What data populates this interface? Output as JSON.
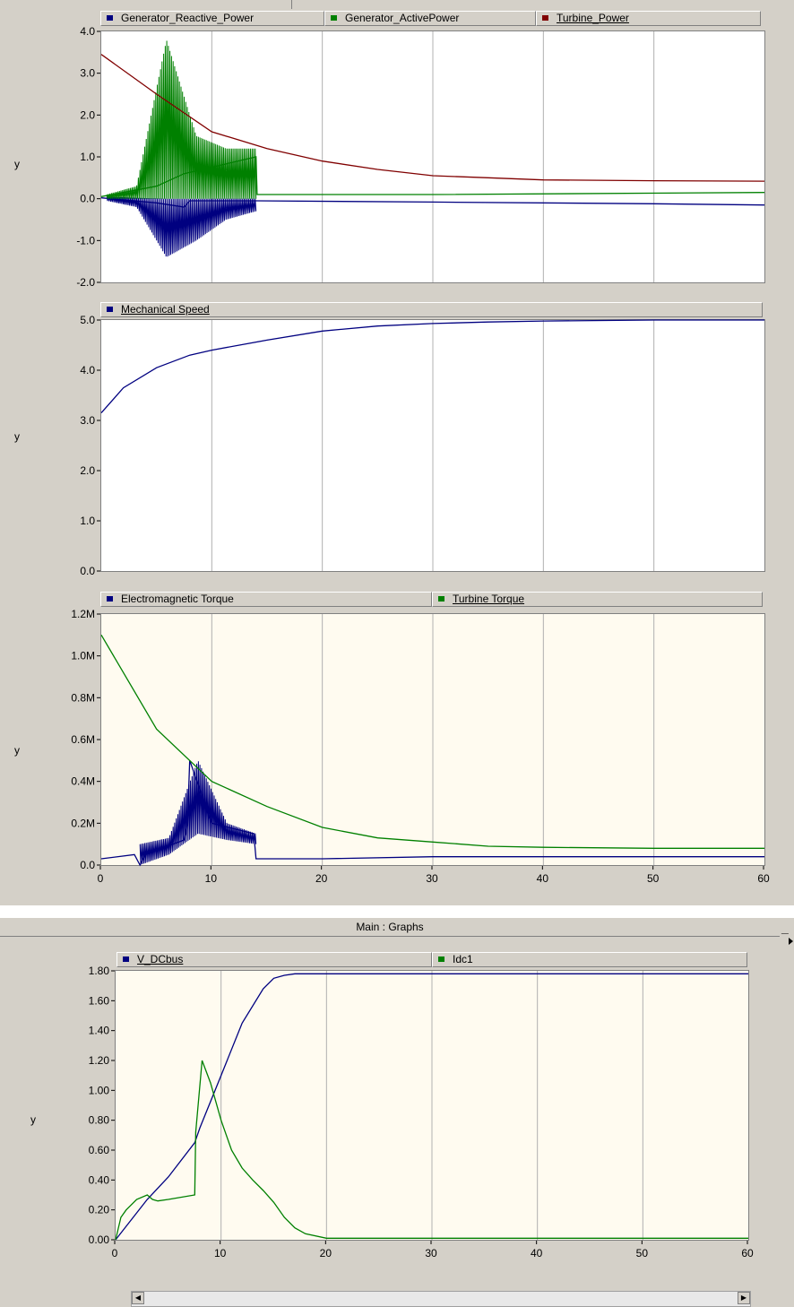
{
  "window": {
    "title": "Main : Graphs",
    "minimize_label": "_"
  },
  "chart_data": [
    {
      "type": "line",
      "ylabel": "y",
      "ylim": [
        -2.0,
        4.0
      ],
      "yticks": [
        "4.0",
        "3.0",
        "2.0",
        "1.0",
        "0.0",
        "-1.0",
        "-2.0"
      ],
      "xlim": [
        0,
        60
      ],
      "background": "#ffffff",
      "series": [
        {
          "name": "Generator_Reactive_Power",
          "color": "#000080",
          "x": [
            0,
            5,
            7.5,
            8,
            10,
            13.8,
            14,
            30,
            50,
            60
          ],
          "y": [
            0.02,
            -0.1,
            -0.2,
            -0.05,
            -0.05,
            -0.05,
            -0.05,
            -0.08,
            -0.12,
            -0.15
          ],
          "oscillation": [
            {
              "x0": 0.5,
              "x1": 14,
              "lo": [
                -0.05,
                -0.2,
                -1.4,
                -1.0,
                -0.5,
                -0.3
              ],
              "hi": [
                0.05,
                0.02,
                0,
                0,
                0,
                0
              ]
            }
          ]
        },
        {
          "name": "Generator_ActivePower",
          "color": "#008000",
          "x": [
            0,
            5,
            7.5,
            14,
            14.1,
            30,
            60
          ],
          "y": [
            0.05,
            0.3,
            0.6,
            1.0,
            0.1,
            0.1,
            0.15
          ],
          "oscillation": [
            {
              "x0": 0.5,
              "x1": 14,
              "lo": [
                0,
                0,
                0,
                0,
                0,
                0
              ],
              "hi": [
                0.1,
                0.3,
                3.8,
                1.5,
                1.2,
                1.2
              ]
            }
          ]
        },
        {
          "name": "Turbine_Power",
          "color": "#800000",
          "x": [
            0,
            5,
            10,
            15,
            20,
            25,
            30,
            35,
            40,
            50,
            60
          ],
          "y": [
            3.45,
            2.5,
            1.6,
            1.2,
            0.9,
            0.7,
            0.55,
            0.5,
            0.45,
            0.43,
            0.42
          ]
        }
      ]
    },
    {
      "type": "line",
      "ylabel": "y",
      "ylim": [
        0.0,
        5.0
      ],
      "yticks": [
        "5.0",
        "4.0",
        "3.0",
        "2.0",
        "1.0",
        "0.0"
      ],
      "xlim": [
        0,
        60
      ],
      "background": "#ffffff",
      "series": [
        {
          "name": "Mechanical Speed",
          "color": "#000080",
          "x": [
            0,
            2,
            5,
            8,
            10,
            15,
            20,
            25,
            30,
            35,
            40,
            50,
            60
          ],
          "y": [
            3.15,
            3.65,
            4.05,
            4.3,
            4.4,
            4.6,
            4.78,
            4.88,
            4.93,
            4.96,
            4.98,
            5.0,
            5.0
          ]
        }
      ]
    },
    {
      "type": "line",
      "ylabel": "y",
      "ylim": [
        0,
        1.2
      ],
      "yticks": [
        "1.2M",
        "1.0M",
        "0.8M",
        "0.6M",
        "0.4M",
        "0.2M",
        "0.0"
      ],
      "xlim": [
        0,
        60
      ],
      "background": "#fffbf0",
      "series": [
        {
          "name": "Electromagnetic Torque",
          "color": "#000080",
          "x": [
            0,
            3,
            3.5,
            4,
            7.5,
            7.8,
            8,
            10,
            13.8,
            14,
            20,
            30,
            60
          ],
          "y": [
            0.03,
            0.05,
            0.0,
            0.05,
            0.12,
            0.2,
            0.5,
            0.2,
            0.15,
            0.03,
            0.03,
            0.04,
            0.04
          ],
          "oscillation": [
            {
              "x0": 3.5,
              "x1": 14,
              "lo": [
                0.0,
                0.05,
                0.15,
                0.12,
                0.1
              ],
              "hi": [
                0.1,
                0.13,
                0.5,
                0.2,
                0.15
              ]
            }
          ]
        },
        {
          "name": "Turbine Torque",
          "color": "#008000",
          "x": [
            0,
            5,
            10,
            15,
            20,
            25,
            30,
            35,
            40,
            50,
            60
          ],
          "y": [
            1.1,
            0.65,
            0.4,
            0.28,
            0.18,
            0.13,
            0.11,
            0.09,
            0.085,
            0.08,
            0.08
          ]
        }
      ]
    },
    {
      "type": "line",
      "ylabel": "y",
      "ylim": [
        0.0,
        1.8
      ],
      "yticks": [
        "1.80",
        "1.60",
        "1.40",
        "1.20",
        "1.00",
        "0.80",
        "0.60",
        "0.40",
        "0.20",
        "0.00"
      ],
      "xlim": [
        0,
        60
      ],
      "xticks": [
        "0",
        "10",
        "20",
        "30",
        "40",
        "50",
        "60"
      ],
      "background": "#fffbf0",
      "series": [
        {
          "name": "V_DCbus",
          "color": "#000080",
          "x": [
            0,
            3,
            5,
            7.5,
            8,
            10,
            12,
            14,
            15,
            16,
            17,
            20,
            30,
            40,
            50,
            60
          ],
          "y": [
            0,
            0.27,
            0.42,
            0.65,
            0.75,
            1.1,
            1.45,
            1.68,
            1.75,
            1.77,
            1.78,
            1.78,
            1.78,
            1.78,
            1.78,
            1.78
          ]
        },
        {
          "name": "Idc1",
          "color": "#008000",
          "x": [
            0,
            0.5,
            1,
            2,
            3,
            3.5,
            4,
            5,
            7.5,
            7.6,
            8.2,
            9,
            10,
            11,
            12,
            13,
            14,
            15,
            16,
            17,
            18,
            20,
            21,
            30,
            60
          ],
          "y": [
            0,
            0.15,
            0.2,
            0.27,
            0.3,
            0.27,
            0.26,
            0.27,
            0.3,
            0.72,
            1.2,
            1.05,
            0.8,
            0.6,
            0.48,
            0.4,
            0.33,
            0.25,
            0.15,
            0.08,
            0.04,
            0.01,
            0.01,
            0.01,
            0.01
          ]
        }
      ]
    }
  ],
  "shared_xticks": [
    "0",
    "10",
    "20",
    "30",
    "40",
    "50",
    "60"
  ]
}
